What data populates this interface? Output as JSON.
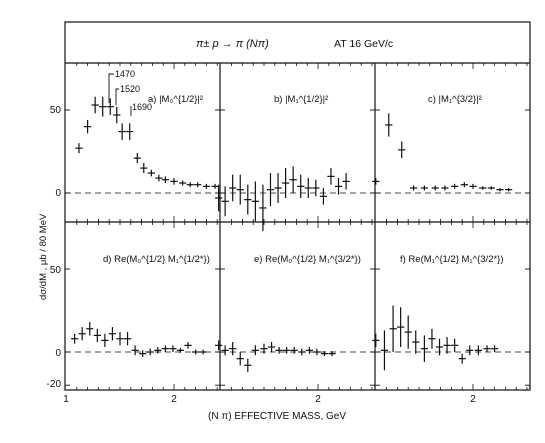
{
  "title": "π± p → π (Nπ)",
  "subtitle": "AT 16 GeV/c",
  "ylabel": "dσ/dM  ,  μb / 80 MeV",
  "xlabel": "(N π)  EFFECTIVE  MASS, GeV",
  "y_ticks_top": [
    "50",
    "0"
  ],
  "y_ticks_bottom": [
    "50",
    "0",
    "-20"
  ],
  "x_ticks": [
    "1",
    "2",
    "2",
    "2"
  ],
  "resonances": [
    "1470",
    "1520",
    "1690"
  ],
  "chart_data": [
    {
      "type": "scatter",
      "panel": "a",
      "label": "a)  |M₀^{1/2}|²",
      "xlim": [
        1.0,
        2.6
      ],
      "ylim": [
        -20,
        100
      ],
      "x": [
        1.12,
        1.2,
        1.27,
        1.34,
        1.41,
        1.47,
        1.52,
        1.59,
        1.66,
        1.72,
        1.79,
        1.86,
        1.92,
        2.0,
        2.08,
        2.15,
        2.22,
        2.3,
        2.38
      ],
      "y": [
        27,
        40,
        53,
        52,
        52,
        47,
        37,
        37,
        21,
        15,
        12,
        9,
        8,
        7,
        6,
        5,
        5,
        4,
        4
      ],
      "err": [
        3,
        4,
        5,
        6,
        5,
        5,
        5,
        5,
        3,
        3,
        2,
        2,
        2,
        2,
        1.5,
        1.5,
        1.5,
        1.5,
        1.5
      ]
    },
    {
      "type": "scatter",
      "panel": "b",
      "label": "b)  |M₁^{1/2}|²",
      "xlim": [
        1.0,
        2.6
      ],
      "ylim": [
        -20,
        100
      ],
      "x": [
        1.08,
        1.14,
        1.21,
        1.28,
        1.35,
        1.42,
        1.49,
        1.56,
        1.63,
        1.7,
        1.77,
        1.84,
        1.91,
        1.98,
        2.05,
        2.12,
        2.19,
        2.26
      ],
      "y": [
        -3,
        -5,
        3,
        2,
        -4,
        -5,
        -9,
        2,
        3,
        6,
        8,
        4,
        3,
        3,
        -2,
        10,
        4,
        7
      ],
      "err": [
        8,
        9,
        8,
        9,
        9,
        12,
        14,
        10,
        9,
        9,
        8,
        7,
        6,
        5,
        5,
        5,
        5,
        5
      ]
    },
    {
      "type": "scatter",
      "panel": "c",
      "label": "c)  |M₁^{3/2}|²",
      "xlim": [
        1.0,
        2.6
      ],
      "ylim": [
        -20,
        100
      ],
      "x": [
        1.1,
        1.22,
        1.34,
        1.45,
        1.55,
        1.65,
        1.74,
        1.83,
        1.92,
        2.0,
        2.09,
        2.17,
        2.25,
        2.33
      ],
      "y": [
        7,
        41,
        26,
        3,
        3,
        3,
        3,
        4,
        5,
        4,
        3,
        3,
        2,
        2
      ],
      "err": [
        2,
        7,
        5,
        1.5,
        1.5,
        1.5,
        1.5,
        1.5,
        1.5,
        1.5,
        1,
        1,
        1,
        1
      ]
    },
    {
      "type": "scatter",
      "panel": "d",
      "label": "d)  Re(M₀^{1/2} M₁^{1/2*})",
      "xlim": [
        1.0,
        2.6
      ],
      "ylim": [
        -20,
        100
      ],
      "x": [
        1.08,
        1.15,
        1.22,
        1.29,
        1.36,
        1.43,
        1.5,
        1.57,
        1.64,
        1.71,
        1.78,
        1.85,
        1.92,
        1.99,
        2.06,
        2.13,
        2.2,
        2.27
      ],
      "y": [
        8,
        11,
        14,
        10,
        7,
        11,
        8,
        8,
        1,
        -1,
        0,
        1,
        2,
        2,
        1,
        4,
        0,
        0
      ],
      "err": [
        3,
        4,
        4,
        4,
        4,
        4,
        4,
        4,
        3,
        2,
        2,
        2,
        2,
        2,
        1.5,
        2,
        1.5,
        1.5
      ]
    },
    {
      "type": "scatter",
      "panel": "e",
      "label": "e)  Re(M₀^{1/2} M₁^{3/2*})",
      "xlim": [
        1.0,
        2.6
      ],
      "ylim": [
        -20,
        100
      ],
      "x": [
        1.08,
        1.14,
        1.21,
        1.28,
        1.35,
        1.42,
        1.5,
        1.57,
        1.64,
        1.71,
        1.78,
        1.85,
        1.92,
        1.99,
        2.06,
        2.13
      ],
      "y": [
        4,
        1,
        2,
        -4,
        -8,
        1,
        2,
        3,
        1,
        1,
        1,
        0,
        1,
        0,
        -1,
        -1
      ],
      "err": [
        3,
        3,
        4,
        4,
        4,
        3,
        3,
        3,
        2,
        2,
        2,
        2,
        2,
        2,
        1.5,
        1.5
      ]
    },
    {
      "type": "scatter",
      "panel": "f",
      "label": "f)  Re(M₁^{1/2} M₁^{3/2*})",
      "xlim": [
        1.0,
        2.6
      ],
      "ylim": [
        -20,
        100
      ],
      "x": [
        1.1,
        1.18,
        1.26,
        1.33,
        1.4,
        1.47,
        1.55,
        1.62,
        1.69,
        1.76,
        1.83,
        1.9,
        1.97,
        2.05,
        2.13,
        2.2
      ],
      "y": [
        7,
        1,
        14,
        15,
        12,
        6,
        2,
        8,
        3,
        4,
        4,
        -4,
        1,
        1,
        2,
        2
      ],
      "err": [
        4,
        12,
        14,
        12,
        10,
        7,
        8,
        6,
        5,
        5,
        4,
        3,
        3,
        3,
        2,
        2
      ]
    }
  ]
}
